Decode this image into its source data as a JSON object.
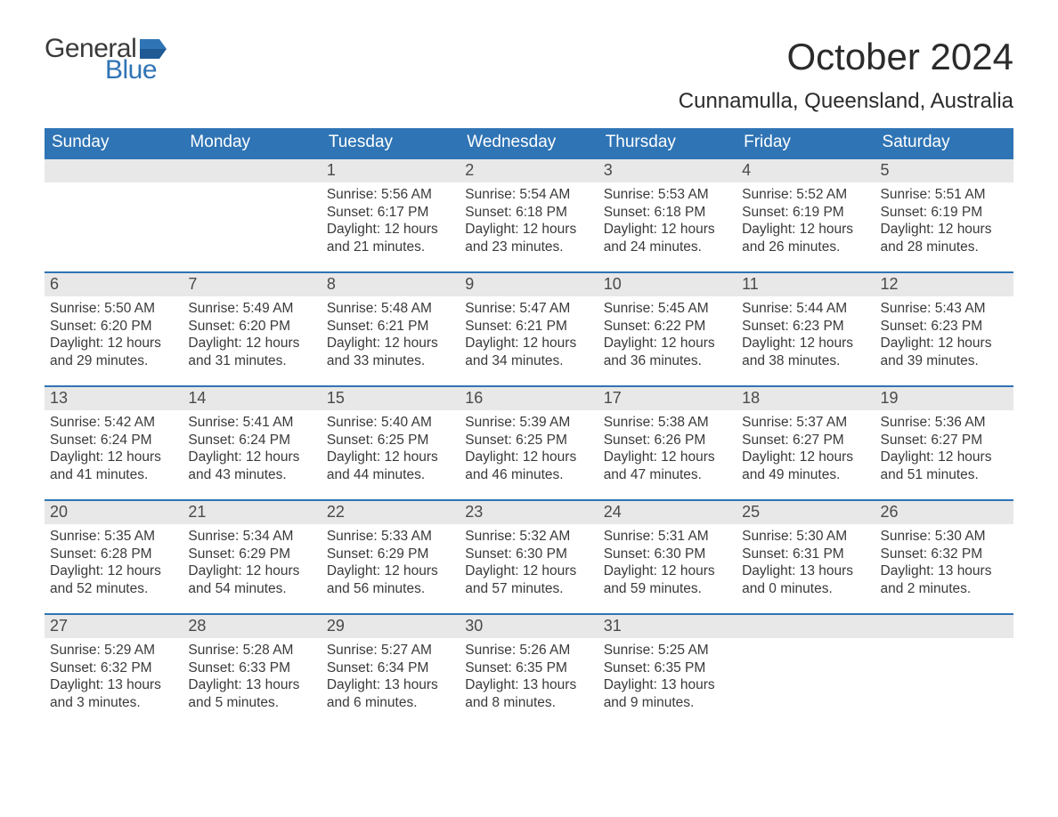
{
  "brand": {
    "word1": "General",
    "word2": "Blue",
    "flag_color": "#2f74b5"
  },
  "title": "October 2024",
  "subtitle": "Cunnamulla, Queensland, Australia",
  "colors": {
    "header_bg": "#2f74b5",
    "header_text": "#ffffff",
    "daynum_bg": "#e8e8e8",
    "cell_border": "#2f74b5",
    "body_text": "#3a3a3a"
  },
  "day_headers": [
    "Sunday",
    "Monday",
    "Tuesday",
    "Wednesday",
    "Thursday",
    "Friday",
    "Saturday"
  ],
  "weeks": [
    [
      null,
      null,
      {
        "n": "1",
        "sr": "Sunrise: 5:56 AM",
        "ss": "Sunset: 6:17 PM",
        "dl": "Daylight: 12 hours and 21 minutes."
      },
      {
        "n": "2",
        "sr": "Sunrise: 5:54 AM",
        "ss": "Sunset: 6:18 PM",
        "dl": "Daylight: 12 hours and 23 minutes."
      },
      {
        "n": "3",
        "sr": "Sunrise: 5:53 AM",
        "ss": "Sunset: 6:18 PM",
        "dl": "Daylight: 12 hours and 24 minutes."
      },
      {
        "n": "4",
        "sr": "Sunrise: 5:52 AM",
        "ss": "Sunset: 6:19 PM",
        "dl": "Daylight: 12 hours and 26 minutes."
      },
      {
        "n": "5",
        "sr": "Sunrise: 5:51 AM",
        "ss": "Sunset: 6:19 PM",
        "dl": "Daylight: 12 hours and 28 minutes."
      }
    ],
    [
      {
        "n": "6",
        "sr": "Sunrise: 5:50 AM",
        "ss": "Sunset: 6:20 PM",
        "dl": "Daylight: 12 hours and 29 minutes."
      },
      {
        "n": "7",
        "sr": "Sunrise: 5:49 AM",
        "ss": "Sunset: 6:20 PM",
        "dl": "Daylight: 12 hours and 31 minutes."
      },
      {
        "n": "8",
        "sr": "Sunrise: 5:48 AM",
        "ss": "Sunset: 6:21 PM",
        "dl": "Daylight: 12 hours and 33 minutes."
      },
      {
        "n": "9",
        "sr": "Sunrise: 5:47 AM",
        "ss": "Sunset: 6:21 PM",
        "dl": "Daylight: 12 hours and 34 minutes."
      },
      {
        "n": "10",
        "sr": "Sunrise: 5:45 AM",
        "ss": "Sunset: 6:22 PM",
        "dl": "Daylight: 12 hours and 36 minutes."
      },
      {
        "n": "11",
        "sr": "Sunrise: 5:44 AM",
        "ss": "Sunset: 6:23 PM",
        "dl": "Daylight: 12 hours and 38 minutes."
      },
      {
        "n": "12",
        "sr": "Sunrise: 5:43 AM",
        "ss": "Sunset: 6:23 PM",
        "dl": "Daylight: 12 hours and 39 minutes."
      }
    ],
    [
      {
        "n": "13",
        "sr": "Sunrise: 5:42 AM",
        "ss": "Sunset: 6:24 PM",
        "dl": "Daylight: 12 hours and 41 minutes."
      },
      {
        "n": "14",
        "sr": "Sunrise: 5:41 AM",
        "ss": "Sunset: 6:24 PM",
        "dl": "Daylight: 12 hours and 43 minutes."
      },
      {
        "n": "15",
        "sr": "Sunrise: 5:40 AM",
        "ss": "Sunset: 6:25 PM",
        "dl": "Daylight: 12 hours and 44 minutes."
      },
      {
        "n": "16",
        "sr": "Sunrise: 5:39 AM",
        "ss": "Sunset: 6:25 PM",
        "dl": "Daylight: 12 hours and 46 minutes."
      },
      {
        "n": "17",
        "sr": "Sunrise: 5:38 AM",
        "ss": "Sunset: 6:26 PM",
        "dl": "Daylight: 12 hours and 47 minutes."
      },
      {
        "n": "18",
        "sr": "Sunrise: 5:37 AM",
        "ss": "Sunset: 6:27 PM",
        "dl": "Daylight: 12 hours and 49 minutes."
      },
      {
        "n": "19",
        "sr": "Sunrise: 5:36 AM",
        "ss": "Sunset: 6:27 PM",
        "dl": "Daylight: 12 hours and 51 minutes."
      }
    ],
    [
      {
        "n": "20",
        "sr": "Sunrise: 5:35 AM",
        "ss": "Sunset: 6:28 PM",
        "dl": "Daylight: 12 hours and 52 minutes."
      },
      {
        "n": "21",
        "sr": "Sunrise: 5:34 AM",
        "ss": "Sunset: 6:29 PM",
        "dl": "Daylight: 12 hours and 54 minutes."
      },
      {
        "n": "22",
        "sr": "Sunrise: 5:33 AM",
        "ss": "Sunset: 6:29 PM",
        "dl": "Daylight: 12 hours and 56 minutes."
      },
      {
        "n": "23",
        "sr": "Sunrise: 5:32 AM",
        "ss": "Sunset: 6:30 PM",
        "dl": "Daylight: 12 hours and 57 minutes."
      },
      {
        "n": "24",
        "sr": "Sunrise: 5:31 AM",
        "ss": "Sunset: 6:30 PM",
        "dl": "Daylight: 12 hours and 59 minutes."
      },
      {
        "n": "25",
        "sr": "Sunrise: 5:30 AM",
        "ss": "Sunset: 6:31 PM",
        "dl": "Daylight: 13 hours and 0 minutes."
      },
      {
        "n": "26",
        "sr": "Sunrise: 5:30 AM",
        "ss": "Sunset: 6:32 PM",
        "dl": "Daylight: 13 hours and 2 minutes."
      }
    ],
    [
      {
        "n": "27",
        "sr": "Sunrise: 5:29 AM",
        "ss": "Sunset: 6:32 PM",
        "dl": "Daylight: 13 hours and 3 minutes."
      },
      {
        "n": "28",
        "sr": "Sunrise: 5:28 AM",
        "ss": "Sunset: 6:33 PM",
        "dl": "Daylight: 13 hours and 5 minutes."
      },
      {
        "n": "29",
        "sr": "Sunrise: 5:27 AM",
        "ss": "Sunset: 6:34 PM",
        "dl": "Daylight: 13 hours and 6 minutes."
      },
      {
        "n": "30",
        "sr": "Sunrise: 5:26 AM",
        "ss": "Sunset: 6:35 PM",
        "dl": "Daylight: 13 hours and 8 minutes."
      },
      {
        "n": "31",
        "sr": "Sunrise: 5:25 AM",
        "ss": "Sunset: 6:35 PM",
        "dl": "Daylight: 13 hours and 9 minutes."
      },
      null,
      null
    ]
  ]
}
